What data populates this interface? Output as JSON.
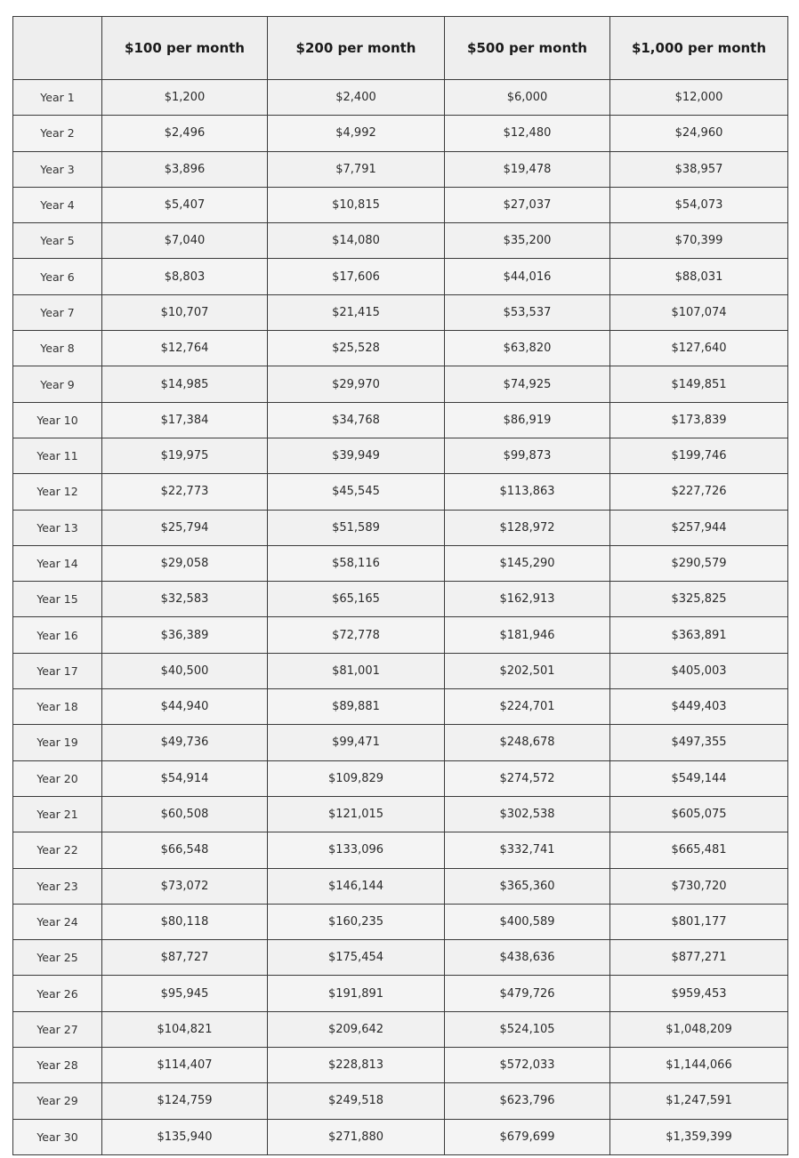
{
  "table": {
    "columns": [
      "",
      "$100 per month",
      "$200 per month",
      "$500 per month",
      "$1,000 per month"
    ],
    "rows": [
      [
        "Year 1",
        "$1,200",
        "$2,400",
        "$6,000",
        "$12,000"
      ],
      [
        "Year 2",
        "$2,496",
        "$4,992",
        "$12,480",
        "$24,960"
      ],
      [
        "Year 3",
        "$3,896",
        "$7,791",
        "$19,478",
        "$38,957"
      ],
      [
        "Year 4",
        "$5,407",
        "$10,815",
        "$27,037",
        "$54,073"
      ],
      [
        "Year 5",
        "$7,040",
        "$14,080",
        "$35,200",
        "$70,399"
      ],
      [
        "Year 6",
        "$8,803",
        "$17,606",
        "$44,016",
        "$88,031"
      ],
      [
        "Year 7",
        "$10,707",
        "$21,415",
        "$53,537",
        "$107,074"
      ],
      [
        "Year 8",
        "$12,764",
        "$25,528",
        "$63,820",
        "$127,640"
      ],
      [
        "Year 9",
        "$14,985",
        "$29,970",
        "$74,925",
        "$149,851"
      ],
      [
        "Year 10",
        "$17,384",
        "$34,768",
        "$86,919",
        "$173,839"
      ],
      [
        "Year 11",
        "$19,975",
        "$39,949",
        "$99,873",
        "$199,746"
      ],
      [
        "Year 12",
        "$22,773",
        "$45,545",
        "$113,863",
        "$227,726"
      ],
      [
        "Year 13",
        "$25,794",
        "$51,589",
        "$128,972",
        "$257,944"
      ],
      [
        "Year 14",
        "$29,058",
        "$58,116",
        "$145,290",
        "$290,579"
      ],
      [
        "Year 15",
        "$32,583",
        "$65,165",
        "$162,913",
        "$325,825"
      ],
      [
        "Year 16",
        "$36,389",
        "$72,778",
        "$181,946",
        "$363,891"
      ],
      [
        "Year 17",
        "$40,500",
        "$81,001",
        "$202,501",
        "$405,003"
      ],
      [
        "Year 18",
        "$44,940",
        "$89,881",
        "$224,701",
        "$449,403"
      ],
      [
        "Year 19",
        "$49,736",
        "$99,471",
        "$248,678",
        "$497,355"
      ],
      [
        "Year 20",
        "$54,914",
        "$109,829",
        "$274,572",
        "$549,144"
      ],
      [
        "Year 21",
        "$60,508",
        "$121,015",
        "$302,538",
        "$605,075"
      ],
      [
        "Year 22",
        "$66,548",
        "$133,096",
        "$332,741",
        "$665,481"
      ],
      [
        "Year 23",
        "$73,072",
        "$146,144",
        "$365,360",
        "$730,720"
      ],
      [
        "Year 24",
        "$80,118",
        "$160,235",
        "$400,589",
        "$801,177"
      ],
      [
        "Year 25",
        "$87,727",
        "$175,454",
        "$438,636",
        "$877,271"
      ],
      [
        "Year 26",
        "$95,945",
        "$191,891",
        "$479,726",
        "$959,453"
      ],
      [
        "Year 27",
        "$104,821",
        "$209,642",
        "$524,105",
        "$1,048,209"
      ],
      [
        "Year 28",
        "$114,407",
        "$228,813",
        "$572,033",
        "$1,144,066"
      ],
      [
        "Year 29",
        "$124,759",
        "$249,518",
        "$623,796",
        "$1,247,591"
      ],
      [
        "Year 30",
        "$135,940",
        "$271,880",
        "$679,699",
        "$1,359,399"
      ]
    ]
  }
}
